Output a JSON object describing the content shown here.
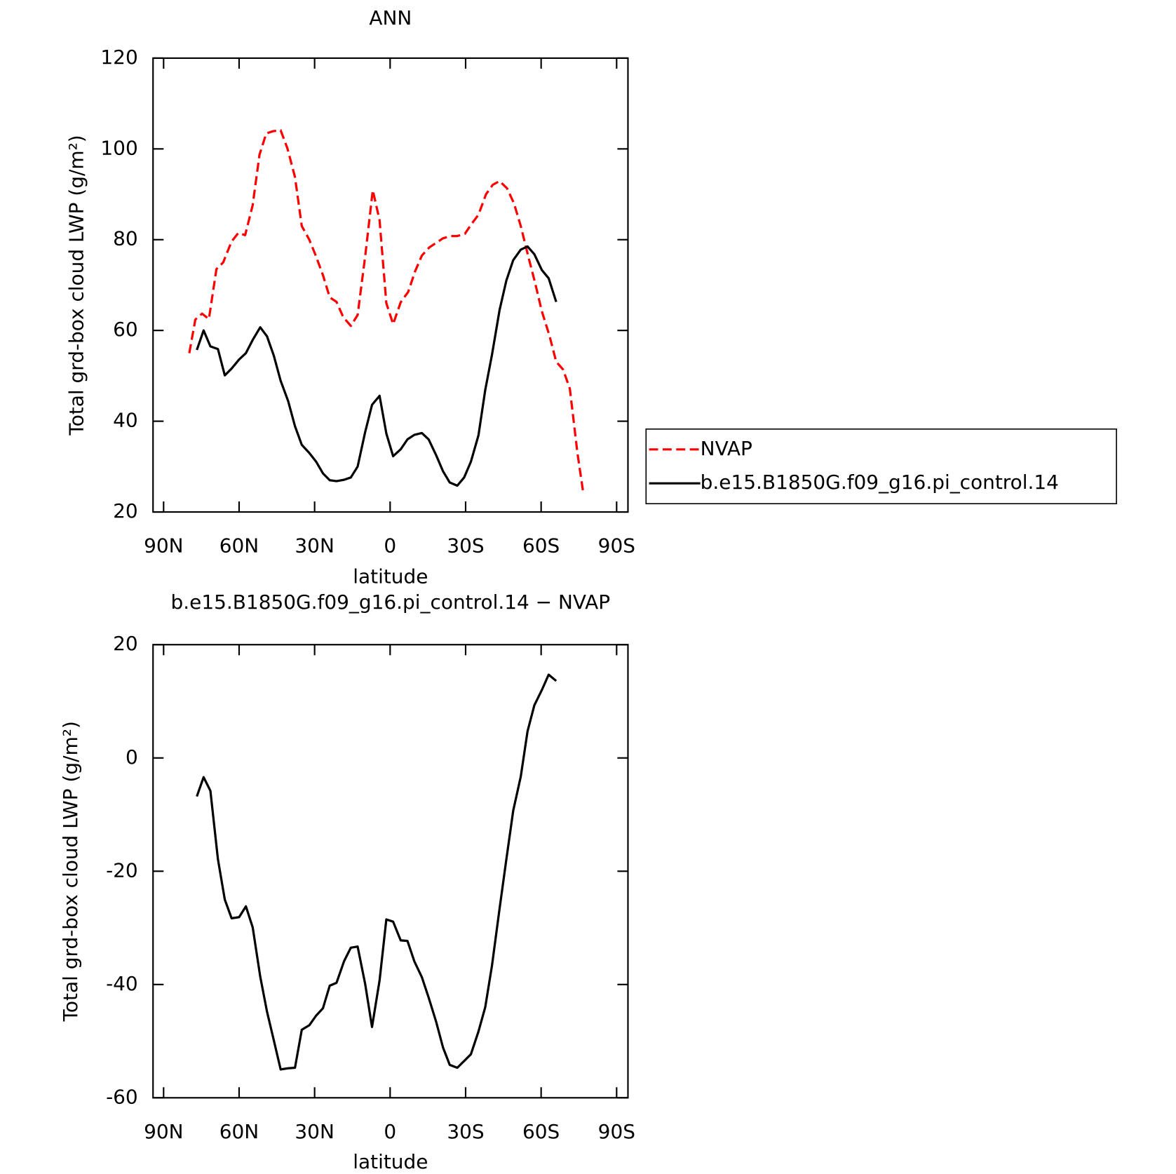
{
  "chart_data": [
    {
      "type": "line",
      "title": "ANN",
      "xlabel": "latitude",
      "ylabel": "Total grd-box cloud LWP (g/m²)",
      "xlim": [
        94.2,
        -94.5
      ],
      "xticks": [
        {
          "value": 90,
          "label": "90N"
        },
        {
          "value": 60,
          "label": "60N"
        },
        {
          "value": 30,
          "label": "30N"
        },
        0,
        {
          "value": -30,
          "label": "30S"
        },
        {
          "value": -60,
          "label": "60S"
        },
        {
          "value": -90,
          "label": "90S"
        }
      ],
      "ylim": [
        20,
        120
      ],
      "yticks": [
        20,
        40,
        60,
        80,
        100,
        120
      ],
      "legend": "right",
      "series": [
        {
          "name": "NVAP",
          "color": "#ff0000",
          "dashed": true,
          "x": [
            79.8,
            77.4,
            74.7,
            72.0,
            69.0,
            66.3,
            63.0,
            60.3,
            57.6,
            54.6,
            51.9,
            49.2,
            46.5,
            43.5,
            40.8,
            37.8,
            35.1,
            32.1,
            29.4,
            26.7,
            24.0,
            21.3,
            18.6,
            15.6,
            12.9,
            9.9,
            6.9,
            4.2,
            1.5,
            -1.2,
            -4.2,
            -7.2,
            -9.9,
            -12.6,
            -15.6,
            -18.3,
            -21.0,
            -24.0,
            -26.7,
            -29.7,
            -32.4,
            -35.1,
            -38.1,
            -40.8,
            -43.5,
            -46.5,
            -49.2,
            -51.9,
            -54.9,
            -57.6,
            -60.3,
            -63.3,
            -66.0,
            -68.7,
            -71.4,
            -74.4,
            -76.8
          ],
          "values": [
            55.0,
            62.4,
            63.7,
            62.5,
            73.5,
            75.0,
            79.6,
            81.5,
            81.0,
            87.6,
            98.7,
            103.4,
            103.9,
            104.1,
            100.1,
            93.8,
            83.0,
            80.0,
            76.3,
            72.2,
            67.3,
            66.3,
            62.9,
            61.0,
            63.4,
            76.3,
            90.9,
            84.3,
            66.0,
            61.4,
            66.2,
            68.5,
            73.0,
            76.5,
            78.3,
            79.3,
            80.3,
            80.8,
            80.8,
            81.3,
            83.5,
            85.5,
            90.0,
            92.1,
            92.9,
            91.3,
            88.0,
            83.0,
            76.3,
            70.5,
            64.2,
            58.9,
            53.1,
            51.4,
            47.2,
            33.1,
            24.0
          ]
        },
        {
          "name": "b.e15.B1850G.f09_g16.pi_control.14",
          "color": "#000000",
          "dashed": false,
          "x": [
            76.8,
            74.1,
            71.4,
            68.4,
            65.7,
            63.0,
            60.0,
            57.3,
            54.6,
            51.6,
            48.9,
            46.2,
            43.5,
            40.5,
            37.8,
            35.1,
            32.1,
            29.4,
            26.7,
            24.0,
            21.3,
            18.3,
            15.6,
            12.9,
            9.9,
            7.2,
            4.2,
            1.5,
            -1.2,
            -4.2,
            -6.9,
            -9.6,
            -12.6,
            -15.3,
            -18.3,
            -21.0,
            -23.7,
            -26.7,
            -29.4,
            -32.1,
            -35.1,
            -37.8,
            -40.5,
            -43.5,
            -46.2,
            -48.9,
            -51.9,
            -54.6,
            -57.3,
            -60.3,
            -63.0,
            -66.0
          ],
          "values": [
            55.7,
            60.0,
            56.5,
            55.9,
            50.1,
            51.6,
            53.6,
            55.0,
            57.9,
            60.7,
            58.7,
            54.4,
            48.9,
            44.4,
            38.9,
            34.8,
            33.0,
            31.1,
            28.5,
            27.0,
            26.8,
            27.1,
            27.6,
            30.0,
            37.6,
            43.6,
            45.6,
            37.3,
            32.3,
            33.8,
            36.0,
            37.0,
            37.4,
            36.0,
            32.5,
            29.0,
            26.5,
            25.8,
            27.6,
            31.1,
            36.9,
            46.9,
            54.7,
            64.5,
            71.0,
            75.5,
            77.8,
            78.5,
            76.8,
            73.3,
            71.5,
            66.3
          ]
        }
      ]
    },
    {
      "type": "line",
      "title": "b.e15.B1850G.f09_g16.pi_control.14 − NVAP",
      "xlabel": "latitude",
      "ylabel": "Total grd-box cloud LWP (g/m²)",
      "xlim": [
        94.2,
        -94.5
      ],
      "xticks": [
        {
          "value": 90,
          "label": "90N"
        },
        {
          "value": 60,
          "label": "60N"
        },
        {
          "value": 30,
          "label": "30N"
        },
        0,
        {
          "value": -30,
          "label": "30S"
        },
        {
          "value": -60,
          "label": "60S"
        },
        {
          "value": -90,
          "label": "90S"
        }
      ],
      "ylim": [
        -60,
        20
      ],
      "yticks": [
        -60,
        -40,
        -20,
        0,
        20
      ],
      "series": [
        {
          "color": "#000000",
          "dashed": false,
          "x": [
            76.8,
            74.1,
            71.4,
            68.4,
            65.7,
            63.0,
            60.0,
            57.3,
            54.6,
            51.6,
            48.9,
            46.2,
            43.5,
            40.5,
            37.8,
            35.1,
            32.1,
            29.4,
            26.7,
            24.0,
            21.3,
            18.3,
            15.6,
            12.9,
            9.9,
            7.2,
            4.2,
            1.5,
            -1.2,
            -4.2,
            -6.9,
            -9.6,
            -12.6,
            -15.3,
            -18.3,
            -21.0,
            -23.7,
            -26.7,
            -29.4,
            -32.1,
            -35.1,
            -37.8,
            -40.5,
            -43.5,
            -46.2,
            -48.9,
            -51.9,
            -54.6,
            -57.3,
            -60.3,
            -63.0,
            -66.0
          ],
          "values": [
            -6.8,
            -3.4,
            -5.8,
            -17.9,
            -25.0,
            -28.3,
            -28.1,
            -26.2,
            -29.9,
            -38.6,
            -44.8,
            -49.9,
            -55.0,
            -54.8,
            -54.7,
            -48.0,
            -47.2,
            -45.5,
            -44.2,
            -40.2,
            -39.7,
            -35.9,
            -33.5,
            -33.3,
            -39.9,
            -47.5,
            -39.3,
            -28.5,
            -28.9,
            -32.2,
            -32.3,
            -35.9,
            -38.7,
            -42.3,
            -46.6,
            -51.1,
            -54.2,
            -54.7,
            -53.5,
            -52.3,
            -48.3,
            -44.0,
            -36.6,
            -26.6,
            -17.9,
            -9.3,
            -3.3,
            4.7,
            9.3,
            12.0,
            14.7,
            13.6
          ]
        }
      ]
    }
  ]
}
